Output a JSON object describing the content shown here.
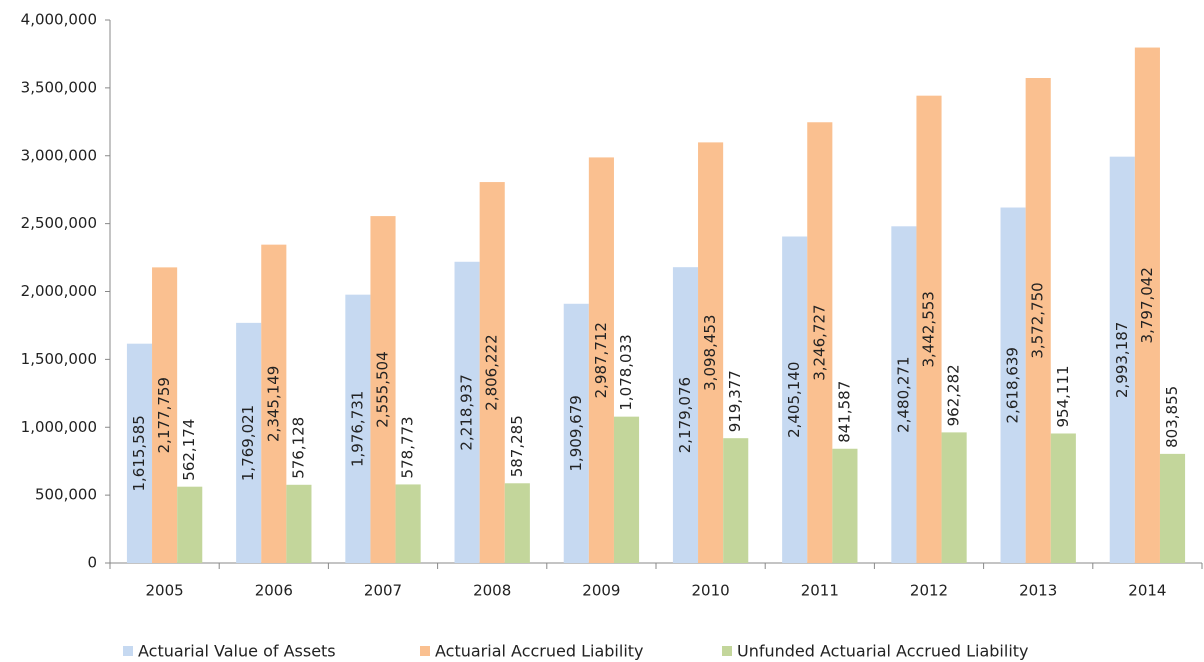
{
  "chart_data": {
    "type": "bar",
    "categories": [
      "2005",
      "2006",
      "2007",
      "2008",
      "2009",
      "2010",
      "2011",
      "2012",
      "2013",
      "2014"
    ],
    "series": [
      {
        "name": "Actuarial Value of Assets",
        "color": "#c6d9f1",
        "values": [
          1615585,
          1769021,
          1976731,
          2218937,
          1909679,
          2179076,
          2405140,
          2480271,
          2618639,
          2993187
        ],
        "value_labels": [
          "1,615,585",
          "1,769,021",
          "1,976,731",
          "2,218,937",
          "1,909,679",
          "2,179,076",
          "2,405,140",
          "2,480,271",
          "2,618,639",
          "2,993,187"
        ]
      },
      {
        "name": "Actuarial Accrued Liability",
        "color": "#fac090",
        "values": [
          2177759,
          2345149,
          2555504,
          2806222,
          2987712,
          3098453,
          3246727,
          3442553,
          3572750,
          3797042
        ],
        "value_labels": [
          "2,177,759",
          "2,345,149",
          "2,555,504",
          "2,806,222",
          "2,987,712",
          "3,098,453",
          "3,246,727",
          "3,442,553",
          "3,572,750",
          "3,797,042"
        ]
      },
      {
        "name": "Unfunded Actuarial Accrued Liability",
        "color": "#c3d69b",
        "values": [
          562174,
          576128,
          578773,
          587285,
          1078033,
          919377,
          841587,
          962282,
          954111,
          803855
        ],
        "value_labels": [
          "562,174",
          "576,128",
          "578,773",
          "587,285",
          "1,078,033",
          "919,377",
          "841,587",
          "962,282",
          "954,111",
          "803,855"
        ]
      }
    ],
    "ylim": [
      0,
      4000000
    ],
    "yticks": [
      0,
      {
        "value": 500000,
        "label": "500,000"
      },
      {
        "value": 1000000,
        "label": "1,000,000"
      },
      {
        "value": 1500000,
        "label": "1,500,000"
      },
      {
        "value": 2000000,
        "label": "2,000,000"
      },
      {
        "value": 2500000,
        "label": "2,500,000"
      },
      {
        "value": 3000000,
        "label": "3,000,000"
      },
      {
        "value": 3500000,
        "label": "3,500,000"
      },
      {
        "value": 4000000,
        "label": "4,000,000"
      }
    ],
    "legend": "bottom"
  }
}
